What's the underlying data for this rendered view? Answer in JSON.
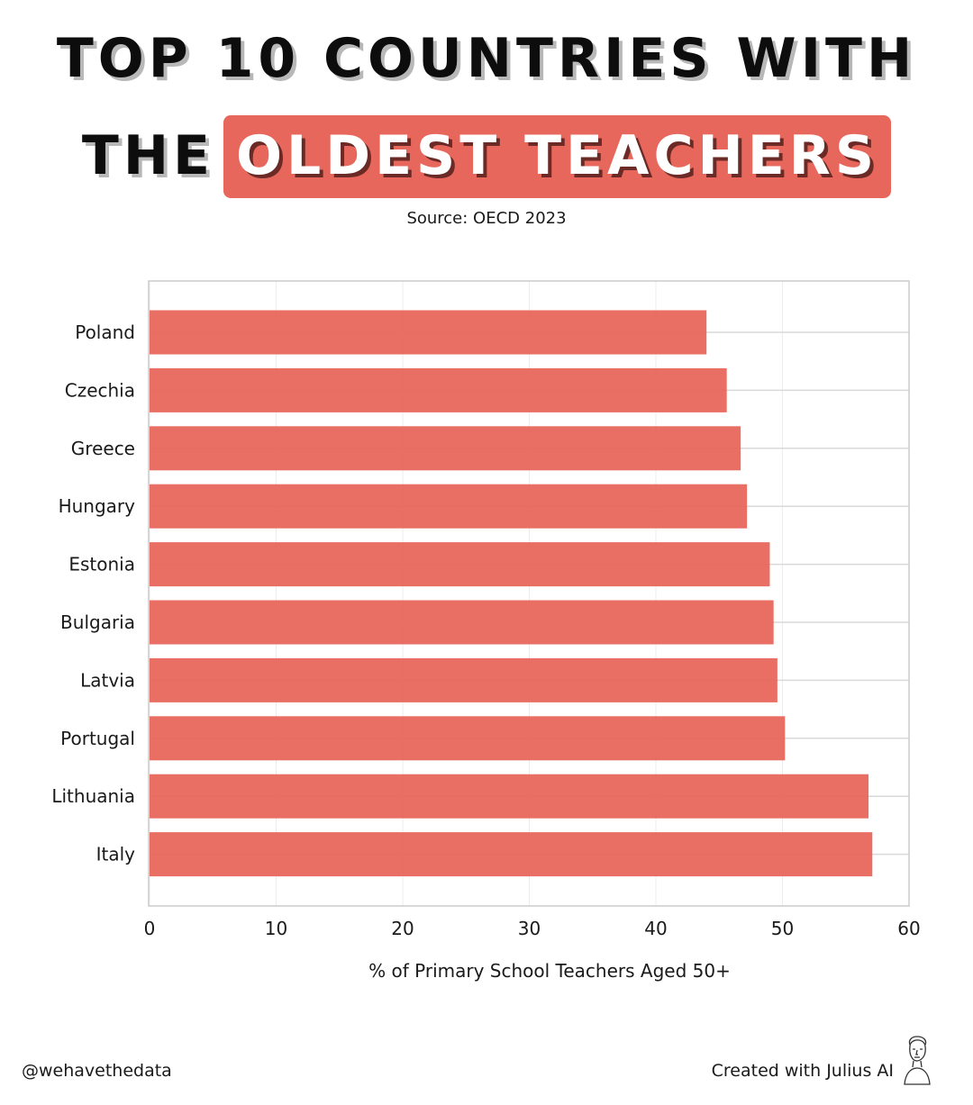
{
  "title": {
    "line1": "TOP 10 COUNTRIES WITH",
    "line2_plain": "THE",
    "line2_highlight": "OLDEST TEACHERS"
  },
  "source": "Source: OECD 2023",
  "colors": {
    "bar": "#e8675c",
    "highlight": "#e8675c",
    "grid": "#d9d9d9"
  },
  "chart_data": {
    "type": "bar",
    "orientation": "horizontal",
    "categories": [
      "Poland",
      "Czechia",
      "Greece",
      "Hungary",
      "Estonia",
      "Bulgaria",
      "Latvia",
      "Portugal",
      "Lithuania",
      "Italy"
    ],
    "values": [
      44.0,
      45.6,
      46.7,
      47.2,
      49.0,
      49.3,
      49.6,
      50.2,
      56.8,
      57.1
    ],
    "xlabel": "% of Primary School Teachers Aged 50+",
    "xlim": [
      0,
      60
    ],
    "xticks": [
      "0",
      "10",
      "20",
      "30",
      "40",
      "50",
      "60"
    ],
    "grid": true
  },
  "footer": {
    "handle": "@wehavethedata",
    "credit": "Created with Julius AI"
  },
  "icons": {
    "logo": "julius-bust-icon"
  }
}
